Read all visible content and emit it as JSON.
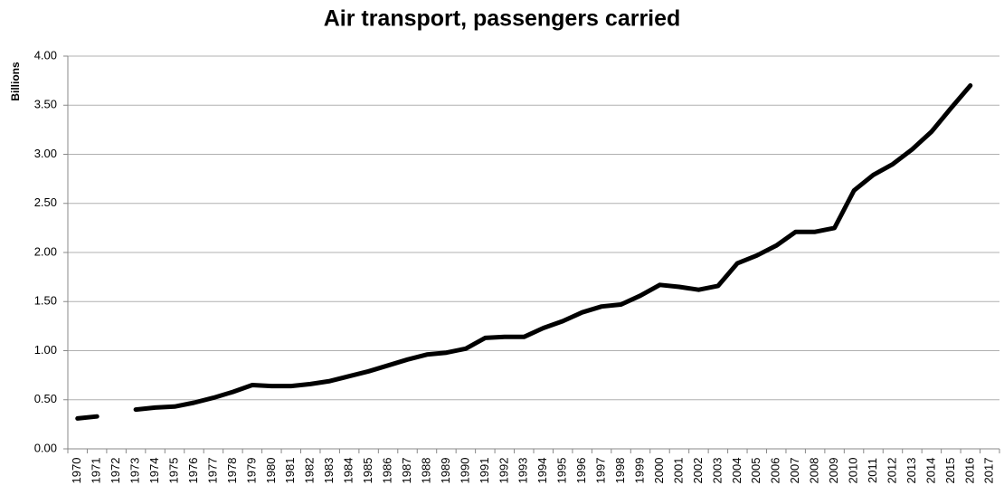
{
  "chart_data": {
    "type": "line",
    "title": "Air transport, passengers carried",
    "y_label": "Billions",
    "categories": [
      "1970",
      "1971",
      "1972",
      "1973",
      "1974",
      "1975",
      "1976",
      "1977",
      "1978",
      "1979",
      "1980",
      "1981",
      "1982",
      "1983",
      "1984",
      "1985",
      "1986",
      "1987",
      "1988",
      "1989",
      "1990",
      "1991",
      "1992",
      "1993",
      "1994",
      "1995",
      "1996",
      "1997",
      "1998",
      "1999",
      "2000",
      "2001",
      "2002",
      "2003",
      "2004",
      "2005",
      "2006",
      "2007",
      "2008",
      "2009",
      "2010",
      "2011",
      "2012",
      "2013",
      "2014",
      "2015",
      "2016",
      "2017"
    ],
    "values": [
      0.31,
      0.33,
      null,
      0.4,
      0.42,
      0.43,
      0.47,
      0.52,
      0.58,
      0.65,
      0.64,
      0.64,
      0.66,
      0.69,
      0.74,
      0.79,
      0.85,
      0.91,
      0.96,
      0.98,
      1.02,
      1.13,
      1.14,
      1.14,
      1.23,
      1.3,
      1.39,
      1.45,
      1.47,
      1.56,
      1.67,
      1.65,
      1.62,
      1.66,
      1.89,
      1.97,
      2.07,
      2.21,
      2.21,
      2.25,
      2.63,
      2.79,
      2.9,
      3.05,
      3.23,
      3.47,
      3.7,
      null
    ],
    "color": "#000000",
    "ylim": [
      0,
      4
    ],
    "yticks": [
      {
        "value": 0,
        "label": "0.00"
      },
      {
        "value": 0.5,
        "label": "0.50"
      },
      {
        "value": 1,
        "label": "1.00"
      },
      {
        "value": 1.5,
        "label": "1.50"
      },
      {
        "value": 2,
        "label": "2.00"
      },
      {
        "value": 2.5,
        "label": "2.50"
      },
      {
        "value": 3,
        "label": "3.00"
      },
      {
        "value": 3.5,
        "label": "3.50"
      },
      {
        "value": 4,
        "label": "4.00"
      }
    ],
    "grid": true
  }
}
